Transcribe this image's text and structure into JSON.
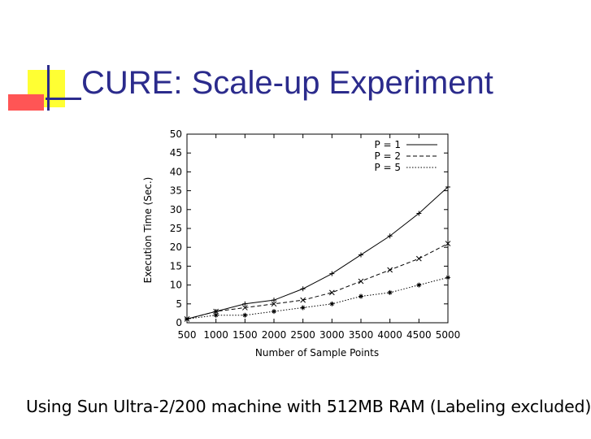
{
  "slide": {
    "title": "CURE:  Scale-up Experiment",
    "caption": "Using Sun Ultra-2/200 machine with 512MB RAM (Labeling excluded)",
    "title_color": "#2b2b8c",
    "deco_colors": {
      "yellow": "#ffff33",
      "red": "#ff5555",
      "blue": "#2b2b8c"
    }
  },
  "chart_data": {
    "type": "line",
    "xlabel": "Number of Sample Points",
    "ylabel": "Execution Time (Sec.)",
    "xlim": [
      500,
      5000
    ],
    "ylim": [
      0,
      50
    ],
    "x_ticks": [
      500,
      1000,
      1500,
      2000,
      2500,
      3000,
      3500,
      4000,
      4500,
      5000
    ],
    "y_ticks": [
      0,
      5,
      10,
      15,
      20,
      25,
      30,
      35,
      40,
      45,
      50
    ],
    "grid": false,
    "legend_position": "top-right",
    "x": [
      500,
      1000,
      1500,
      2000,
      2500,
      3000,
      3500,
      4000,
      4500,
      5000
    ],
    "series": [
      {
        "name": "P = 1",
        "values": [
          1,
          3,
          5,
          6,
          9,
          13,
          18,
          23,
          29,
          36
        ],
        "style": "solid"
      },
      {
        "name": "P = 2",
        "values": [
          1,
          3,
          4,
          5,
          6,
          8,
          11,
          14,
          17,
          21
        ],
        "style": "dashed"
      },
      {
        "name": "P = 5",
        "values": [
          1,
          2,
          2,
          3,
          4,
          5,
          7,
          8,
          10,
          12
        ],
        "style": "dotted"
      }
    ]
  }
}
